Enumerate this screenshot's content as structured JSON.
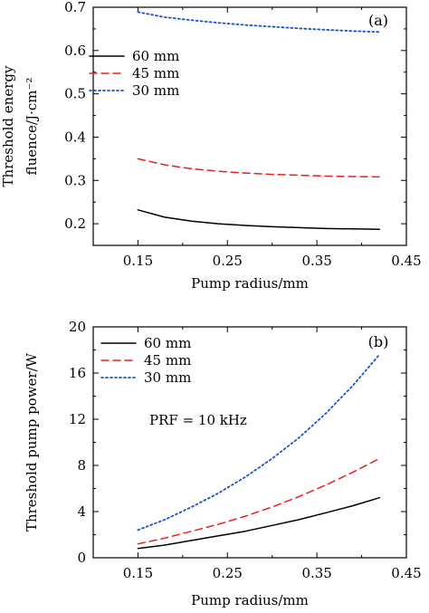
{
  "chart_data": [
    {
      "type": "line",
      "panel_label": "(a)",
      "xlabel": "Pump radius/mm",
      "ylabel_lines": [
        "Threshold energy",
        "fluence/J·cm⁻²"
      ],
      "xlim": [
        0.1,
        0.45
      ],
      "ylim": [
        0.15,
        0.7
      ],
      "xticks": [
        0.15,
        0.25,
        0.35,
        0.45
      ],
      "yticks": [
        0.2,
        0.3,
        0.4,
        0.5,
        0.6,
        0.7
      ],
      "xtick_labels": [
        "0.15",
        "0.25",
        "0.35",
        "0.45"
      ],
      "ytick_labels": [
        "0.2",
        "0.3",
        "0.4",
        "0.5",
        "0.6",
        "0.7"
      ],
      "legend_position": "upper-left",
      "series": [
        {
          "name": "60 mm",
          "style": "solid",
          "color": "#000000",
          "x": [
            0.15,
            0.18,
            0.21,
            0.24,
            0.27,
            0.3,
            0.33,
            0.36,
            0.39,
            0.42
          ],
          "values": [
            0.232,
            0.215,
            0.206,
            0.2,
            0.196,
            0.193,
            0.191,
            0.189,
            0.188,
            0.187
          ]
        },
        {
          "name": "45 mm",
          "style": "dashed",
          "color": "#e8201f",
          "x": [
            0.15,
            0.18,
            0.21,
            0.24,
            0.27,
            0.3,
            0.33,
            0.36,
            0.39,
            0.42
          ],
          "values": [
            0.35,
            0.336,
            0.327,
            0.321,
            0.317,
            0.314,
            0.312,
            0.31,
            0.309,
            0.308
          ]
        },
        {
          "name": "30 mm",
          "style": "dotted",
          "color": "#1a55c8",
          "x": [
            0.15,
            0.18,
            0.21,
            0.24,
            0.27,
            0.3,
            0.33,
            0.36,
            0.39,
            0.42
          ],
          "values": [
            0.689,
            0.677,
            0.67,
            0.664,
            0.659,
            0.655,
            0.651,
            0.648,
            0.645,
            0.643
          ]
        }
      ]
    },
    {
      "type": "line",
      "panel_label": "(b)",
      "xlabel": "Pump radius/mm",
      "ylabel_lines": [
        "Threshold pump power/W"
      ],
      "xlim": [
        0.1,
        0.45
      ],
      "ylim": [
        0,
        20
      ],
      "xticks": [
        0.15,
        0.25,
        0.35,
        0.45
      ],
      "yticks": [
        0,
        4,
        8,
        12,
        16,
        20
      ],
      "xtick_labels": [
        "0.15",
        "0.25",
        "0.35",
        "0.45"
      ],
      "ytick_labels": [
        "0",
        "4",
        "8",
        "12",
        "16",
        "20"
      ],
      "legend_position": "upper-left",
      "annotation": "PRF = 10 kHz",
      "series": [
        {
          "name": "60 mm",
          "style": "solid",
          "color": "#000000",
          "x": [
            0.15,
            0.18,
            0.21,
            0.24,
            0.27,
            0.3,
            0.33,
            0.36,
            0.39,
            0.42
          ],
          "values": [
            0.8,
            1.1,
            1.5,
            1.9,
            2.3,
            2.8,
            3.3,
            3.9,
            4.5,
            5.2
          ]
        },
        {
          "name": "45 mm",
          "style": "dashed",
          "color": "#e8201f",
          "x": [
            0.15,
            0.18,
            0.21,
            0.24,
            0.27,
            0.3,
            0.33,
            0.36,
            0.39,
            0.42
          ],
          "values": [
            1.2,
            1.7,
            2.3,
            2.9,
            3.6,
            4.4,
            5.3,
            6.3,
            7.4,
            8.6
          ]
        },
        {
          "name": "30 mm",
          "style": "dotted",
          "color": "#1a55c8",
          "x": [
            0.15,
            0.18,
            0.21,
            0.24,
            0.27,
            0.3,
            0.33,
            0.36,
            0.39,
            0.42
          ],
          "values": [
            2.4,
            3.3,
            4.4,
            5.6,
            7.0,
            8.6,
            10.4,
            12.5,
            14.9,
            17.6
          ]
        }
      ]
    }
  ]
}
